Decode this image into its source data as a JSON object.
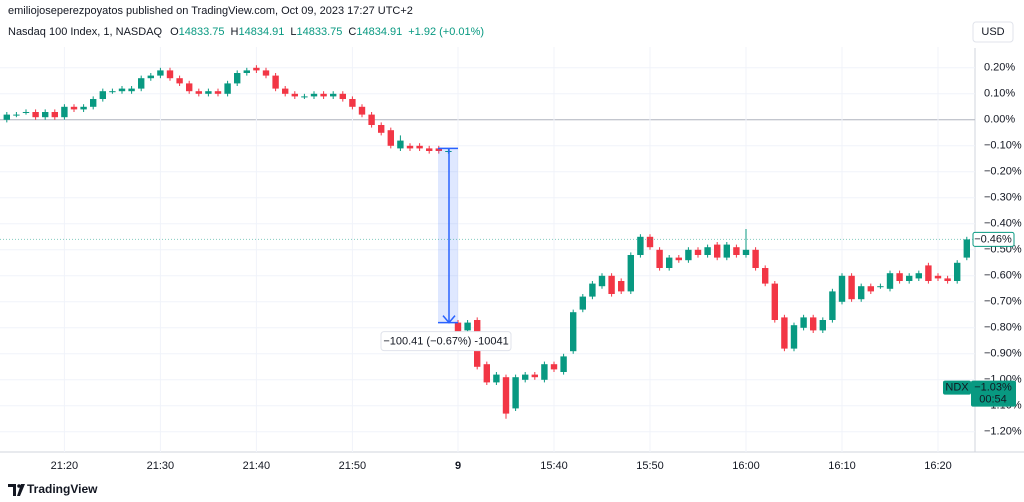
{
  "header": {
    "publisher": "emiliojoseperezpoyatos published on TradingView.com, Oct 09, 2023 17:27 UTC+2",
    "currency_button": "USD"
  },
  "legend": {
    "symbol": "Nasdaq 100 Index, 1, NASDAQ",
    "ohlc": [
      {
        "key": "O",
        "value": "14833.75"
      },
      {
        "key": "H",
        "value": "14834.91"
      },
      {
        "key": "L",
        "value": "14833.75"
      },
      {
        "key": "C",
        "value": "14834.91"
      }
    ],
    "change": "+1.92 (+0.01%)"
  },
  "footer": {
    "brand": "TradingView"
  },
  "chart_data": {
    "type": "candlestick",
    "up_color": "#089981",
    "down_color": "#f23645",
    "grid": true,
    "categories": [
      null,
      null,
      null,
      null,
      null,
      null,
      "21:20",
      null,
      null,
      null,
      null,
      null,
      null,
      null,
      null,
      null,
      "21:30",
      null,
      null,
      null,
      null,
      null,
      null,
      null,
      null,
      null,
      "21:40",
      null,
      null,
      null,
      null,
      null,
      null,
      null,
      null,
      null,
      "21:50",
      null,
      null,
      null,
      null,
      null,
      null,
      null,
      null,
      null,
      null,
      "9",
      null,
      null,
      null,
      null,
      null,
      null,
      null,
      null,
      null,
      "15:40",
      null,
      null,
      null,
      null,
      null,
      null,
      null,
      null,
      null,
      "15:50",
      null,
      null,
      null,
      null,
      null,
      null,
      null,
      null,
      null,
      "16:00",
      null,
      null,
      null,
      null,
      null,
      null,
      null,
      null,
      null,
      "16:10",
      null,
      null,
      null,
      null,
      null,
      null,
      null,
      null,
      null,
      "16:20",
      null,
      null,
      null
    ],
    "open": [
      0.0,
      0.02,
      0.03,
      0.03,
      0.01,
      0.03,
      0.01,
      0.05,
      0.04,
      0.05,
      0.08,
      0.11,
      0.11,
      0.11,
      0.12,
      0.16,
      0.17,
      0.19,
      0.16,
      0.14,
      0.11,
      0.1,
      0.11,
      0.1,
      0.14,
      0.18,
      0.2,
      0.19,
      0.17,
      0.12,
      0.1,
      0.09,
      0.09,
      0.1,
      0.09,
      0.1,
      0.08,
      0.05,
      0.02,
      -0.02,
      -0.04,
      -0.11,
      -0.1,
      -0.1,
      -0.11,
      -0.11,
      -0.12,
      -0.78,
      -0.81,
      -0.77,
      -0.94,
      -1.01,
      -0.99,
      -1.11,
      -1.0,
      -0.98,
      -1.0,
      -0.94,
      -0.97,
      -0.89,
      -0.73,
      -0.68,
      -0.64,
      -0.6,
      -0.62,
      -0.66,
      -0.52,
      -0.45,
      -0.5,
      -0.57,
      -0.53,
      -0.54,
      -0.5,
      -0.52,
      -0.48,
      -0.53,
      -0.49,
      -0.52,
      -0.5,
      -0.57,
      -0.63,
      -0.76,
      -0.88,
      -0.8,
      -0.76,
      -0.81,
      -0.77,
      -0.7,
      -0.6,
      -0.69,
      -0.64,
      -0.64,
      -0.65,
      -0.59,
      -0.62,
      -0.61,
      -0.56,
      -0.6,
      -0.61,
      -0.62,
      -0.53
    ],
    "high": [
      0.03,
      0.03,
      0.04,
      0.04,
      0.04,
      0.04,
      0.06,
      0.06,
      0.06,
      0.09,
      0.12,
      0.12,
      0.13,
      0.13,
      0.17,
      0.18,
      0.2,
      0.2,
      0.17,
      0.15,
      0.12,
      0.12,
      0.12,
      0.15,
      0.19,
      0.2,
      0.21,
      0.2,
      0.18,
      0.13,
      0.11,
      0.1,
      0.11,
      0.11,
      0.11,
      0.11,
      0.09,
      0.06,
      0.03,
      -0.01,
      -0.03,
      -0.06,
      -0.09,
      -0.09,
      -0.1,
      -0.1,
      -0.11,
      -0.77,
      -0.77,
      -0.76,
      -0.93,
      -0.97,
      -0.98,
      -0.98,
      -0.97,
      -0.97,
      -0.93,
      -0.93,
      -0.9,
      -0.73,
      -0.67,
      -0.62,
      -0.59,
      -0.59,
      -0.61,
      -0.51,
      -0.44,
      -0.44,
      -0.49,
      -0.52,
      -0.52,
      -0.49,
      -0.49,
      -0.48,
      -0.47,
      -0.47,
      -0.48,
      -0.42,
      -0.49,
      -0.56,
      -0.62,
      -0.75,
      -0.78,
      -0.75,
      -0.75,
      -0.76,
      -0.65,
      -0.59,
      -0.59,
      -0.63,
      -0.63,
      -0.63,
      -0.58,
      -0.58,
      -0.59,
      -0.58,
      -0.55,
      -0.59,
      -0.6,
      -0.54,
      -0.45
    ],
    "low": [
      -0.01,
      0.01,
      0.02,
      0.0,
      0.0,
      0.0,
      0.0,
      0.03,
      0.03,
      0.04,
      0.07,
      0.1,
      0.1,
      0.1,
      0.11,
      0.15,
      0.16,
      0.15,
      0.13,
      0.1,
      0.09,
      0.09,
      0.09,
      0.09,
      0.13,
      0.17,
      0.18,
      0.16,
      0.11,
      0.09,
      0.08,
      0.08,
      0.08,
      0.08,
      0.08,
      0.07,
      0.04,
      0.01,
      -0.03,
      -0.06,
      -0.11,
      -0.12,
      -0.12,
      -0.12,
      -0.13,
      -0.13,
      -0.13,
      -0.83,
      -0.82,
      -0.96,
      -1.02,
      -1.02,
      -1.15,
      -1.12,
      -1.01,
      -1.0,
      -1.01,
      -0.97,
      -0.98,
      -0.9,
      -0.74,
      -0.69,
      -0.65,
      -0.68,
      -0.67,
      -0.67,
      -0.53,
      -0.5,
      -0.58,
      -0.58,
      -0.55,
      -0.55,
      -0.53,
      -0.53,
      -0.54,
      -0.54,
      -0.53,
      -0.53,
      -0.58,
      -0.64,
      -0.78,
      -0.89,
      -0.89,
      -0.81,
      -0.82,
      -0.82,
      -0.78,
      -0.71,
      -0.7,
      -0.7,
      -0.67,
      -0.65,
      -0.66,
      -0.63,
      -0.63,
      -0.62,
      -0.63,
      -0.62,
      -0.63,
      -0.63,
      -0.54
    ],
    "close": [
      0.02,
      0.02,
      0.03,
      0.01,
      0.03,
      0.01,
      0.05,
      0.04,
      0.05,
      0.08,
      0.11,
      0.11,
      0.12,
      0.12,
      0.16,
      0.17,
      0.19,
      0.16,
      0.14,
      0.11,
      0.1,
      0.11,
      0.1,
      0.14,
      0.18,
      0.19,
      0.19,
      0.17,
      0.12,
      0.1,
      0.09,
      0.09,
      0.1,
      0.09,
      0.1,
      0.08,
      0.05,
      0.02,
      -0.02,
      -0.05,
      -0.1,
      -0.08,
      -0.11,
      -0.11,
      -0.12,
      -0.12,
      -0.12,
      -0.82,
      -0.78,
      -0.95,
      -1.01,
      -0.98,
      -1.13,
      -0.99,
      -0.98,
      -0.99,
      -0.94,
      -0.96,
      -0.91,
      -0.74,
      -0.68,
      -0.63,
      -0.6,
      -0.67,
      -0.66,
      -0.52,
      -0.45,
      -0.49,
      -0.57,
      -0.53,
      -0.54,
      -0.5,
      -0.52,
      -0.49,
      -0.53,
      -0.48,
      -0.52,
      -0.5,
      -0.57,
      -0.63,
      -0.77,
      -0.88,
      -0.79,
      -0.76,
      -0.81,
      -0.77,
      -0.66,
      -0.6,
      -0.69,
      -0.64,
      -0.66,
      -0.64,
      -0.59,
      -0.62,
      -0.6,
      -0.59,
      -0.62,
      -0.61,
      -0.62,
      -0.55,
      -0.46
    ],
    "ylim": [
      -1.27,
      0.28
    ],
    "yticks": [
      {
        "value": 0.2,
        "label": "0.20%"
      },
      {
        "value": 0.1,
        "label": "0.10%"
      },
      {
        "value": 0,
        "label": "0.00%"
      },
      {
        "value": -0.1,
        "label": "−0.10%"
      },
      {
        "value": -0.2,
        "label": "−0.20%"
      },
      {
        "value": -0.3,
        "label": "−0.30%"
      },
      {
        "value": -0.4,
        "label": "−0.40%"
      },
      {
        "value": -0.5,
        "label": "−0.50%"
      },
      {
        "value": -0.6,
        "label": "−0.60%"
      },
      {
        "value": -0.7,
        "label": "−0.70%"
      },
      {
        "value": -0.8,
        "label": "−0.80%"
      },
      {
        "value": -0.9,
        "label": "−0.90%"
      },
      {
        "value": -1.0,
        "label": "−1.00%"
      },
      {
        "value": -1.1,
        "label": "−1.10%"
      },
      {
        "value": -1.2,
        "label": "−1.20%"
      }
    ],
    "baseline": 0,
    "last_price": {
      "value": -0.46,
      "label": "−0.46%"
    },
    "compare_price": {
      "name": "NDX",
      "value": -1.03,
      "label": "−1.03%",
      "countdown": "00:54"
    },
    "measure": {
      "from": -0.11,
      "to": -0.78,
      "label": "−100.41 (−0.67%) -10041"
    }
  }
}
